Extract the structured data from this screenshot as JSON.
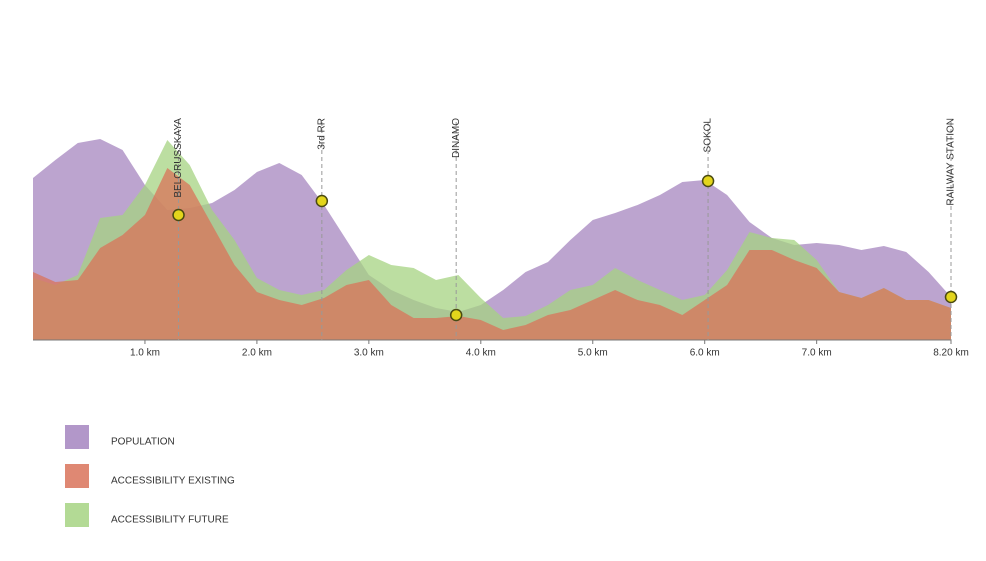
{
  "chart_data": {
    "type": "area",
    "x": [
      0,
      0.2,
      0.4,
      0.6,
      0.8,
      1.0,
      1.2,
      1.4,
      1.6,
      1.8,
      2.0,
      2.2,
      2.4,
      2.6,
      2.8,
      3.0,
      3.2,
      3.4,
      3.6,
      3.8,
      4.0,
      4.2,
      4.4,
      4.6,
      4.8,
      5.0,
      5.2,
      5.4,
      5.6,
      5.8,
      6.0,
      6.2,
      6.4,
      6.6,
      6.8,
      7.0,
      7.2,
      7.4,
      7.6,
      7.8,
      8.0,
      8.2
    ],
    "xlim": [
      0,
      8.2
    ],
    "ylim": [
      0,
      100
    ],
    "xticks": [
      {
        "value": 1,
        "label": "1.0 km"
      },
      {
        "value": 2,
        "label": "2.0 km"
      },
      {
        "value": 3,
        "label": "3.0 km"
      },
      {
        "value": 4,
        "label": "4.0 km"
      },
      {
        "value": 5,
        "label": "5.0 km"
      },
      {
        "value": 6,
        "label": "6.0 km"
      },
      {
        "value": 7,
        "label": "7.0 km"
      },
      {
        "value": 8.2,
        "label": "8.20 km"
      }
    ],
    "series": [
      {
        "name": "POPULATION",
        "color": "#a585bf",
        "values": [
          81,
          90,
          98.5,
          100.5,
          95,
          77.5,
          65,
          66,
          68.5,
          75,
          84,
          88.5,
          82.5,
          67.5,
          50,
          32.5,
          25,
          20,
          16,
          14,
          17.5,
          25,
          34,
          39,
          50,
          60,
          63.5,
          67.5,
          72.5,
          79,
          80,
          72.5,
          59,
          51,
          47.5,
          48.5,
          47.5,
          45,
          47,
          44,
          34,
          21.5
        ]
      },
      {
        "name": "ACCESSIBILITY FUTURE",
        "color": "#a6d382",
        "values": [
          31,
          27.5,
          32.5,
          61,
          62.5,
          77.5,
          100,
          87.5,
          65,
          50,
          31,
          25,
          22.5,
          25,
          35,
          42.5,
          37.5,
          36,
          30,
          32.5,
          21,
          11,
          12,
          17.5,
          25,
          27.5,
          36,
          30,
          25,
          20,
          22.5,
          35,
          54,
          51,
          50,
          40,
          24,
          21,
          26,
          20,
          20,
          16
        ]
      },
      {
        "name": "ACCESSIBILITY EXISTING",
        "color": "#d9735a",
        "values": [
          34,
          29,
          30,
          46,
          52.5,
          62.5,
          86,
          77.5,
          57.5,
          37.5,
          24,
          20,
          17.5,
          21,
          27.5,
          30,
          17.5,
          11,
          11,
          12,
          10,
          5,
          7.5,
          12.5,
          15,
          20,
          25,
          20,
          17.5,
          12.5,
          20,
          27.5,
          45,
          45,
          40,
          36,
          24,
          21,
          26,
          20,
          20,
          16
        ]
      }
    ],
    "stations": [
      {
        "name": "BELORUSSKAYA",
        "x": 1.3,
        "value": 62.5
      },
      {
        "name": "3rd RR",
        "x": 2.58,
        "value": 69.5
      },
      {
        "name": "DINAMO",
        "x": 3.78,
        "value": 12.5
      },
      {
        "name": "SOKOL",
        "x": 6.03,
        "value": 79.5
      },
      {
        "name": "RAILWAY STATION",
        "x": 8.2,
        "value": 21.5
      }
    ]
  }
}
